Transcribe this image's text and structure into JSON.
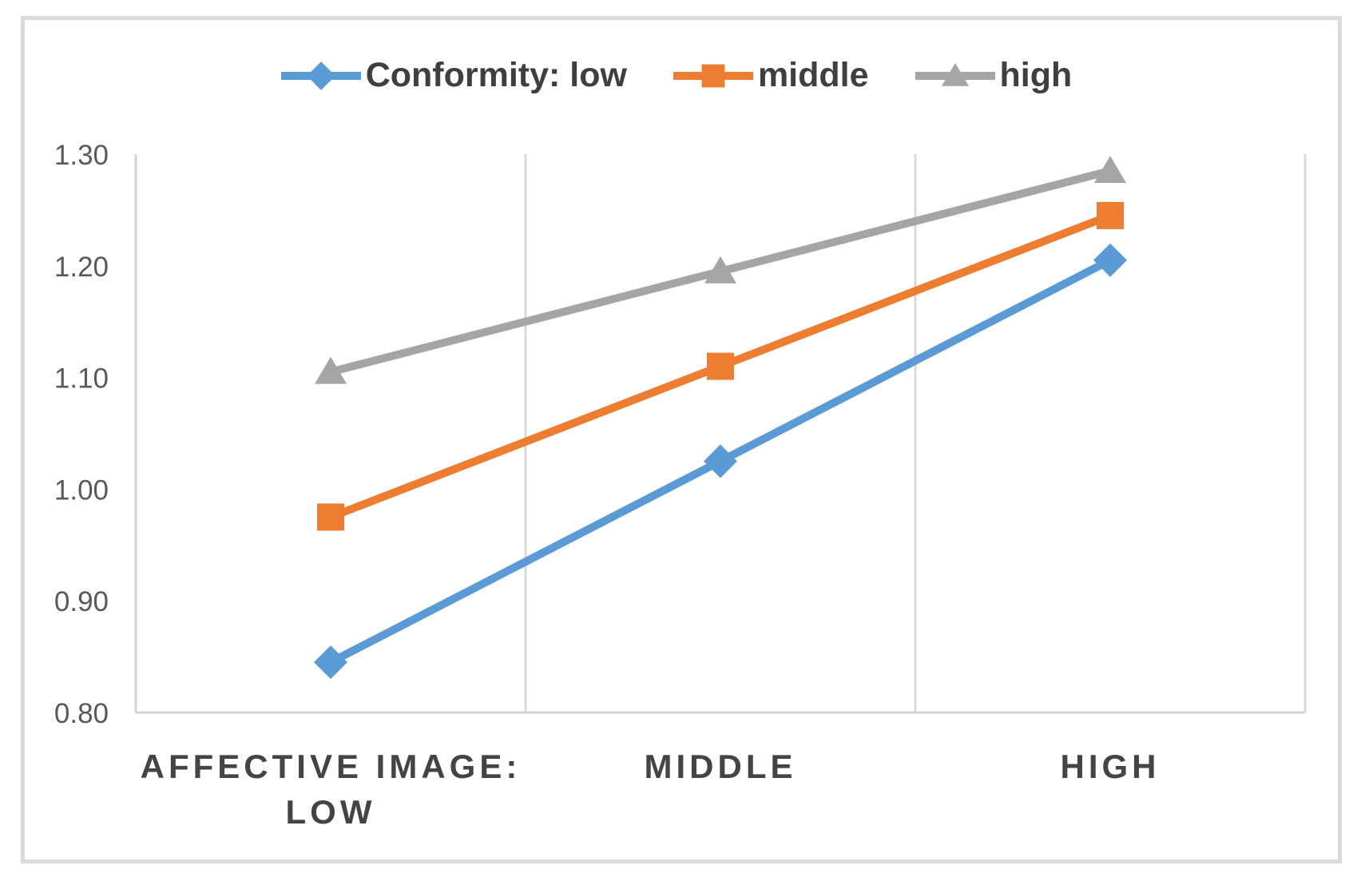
{
  "chart_data": {
    "type": "line",
    "title": "",
    "legend_position": "top-center",
    "categories": [
      "AFFECTIVE IMAGE: LOW",
      "MIDDLE",
      "HIGH"
    ],
    "category_label_lines": [
      [
        "AFFECTIVE IMAGE:",
        "LOW"
      ],
      [
        "MIDDLE"
      ],
      [
        "HIGH"
      ]
    ],
    "series": [
      {
        "name": "Conformity: low",
        "marker": "diamond",
        "color": "#5B9BD5",
        "values": [
          0.845,
          1.025,
          1.205
        ]
      },
      {
        "name": "middle",
        "marker": "square",
        "color": "#ED7D31",
        "values": [
          0.975,
          1.11,
          1.245
        ]
      },
      {
        "name": "high",
        "marker": "triangle",
        "color": "#A5A5A5",
        "values": [
          1.105,
          1.195,
          1.285
        ]
      }
    ],
    "ylim": [
      0.8,
      1.3
    ],
    "ytick_step": 0.1,
    "ytick_labels": [
      "0.80",
      "0.90",
      "1.00",
      "1.10",
      "1.20",
      "1.30"
    ],
    "grid": {
      "vertical": true,
      "horizontal": false
    },
    "appearance": {
      "background": "#FFFFFF",
      "frame_border_color": "#DBDBDB",
      "axis_line_color": "#D4D4D4",
      "gridline_color": "#D9D9D9",
      "ytick_text_color": "#595959",
      "xtick_text_color": "#444444",
      "legend_text_color": "#3F3F3F"
    }
  }
}
